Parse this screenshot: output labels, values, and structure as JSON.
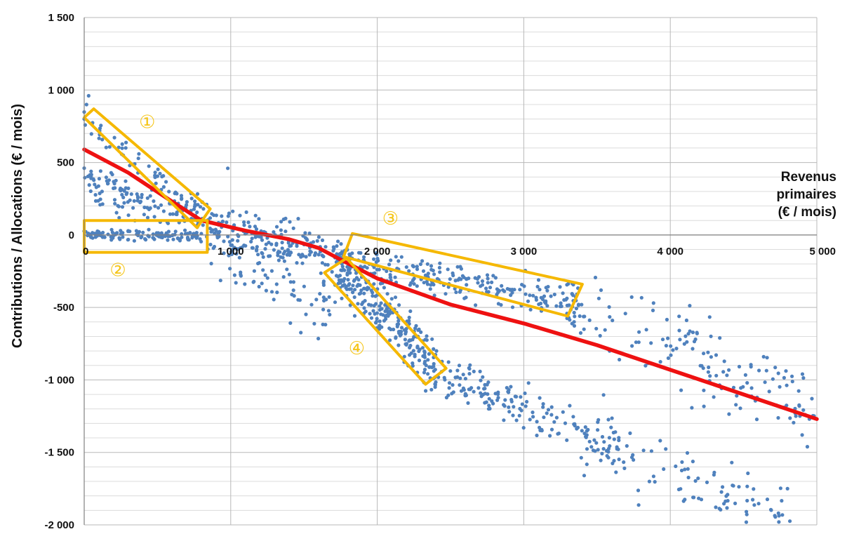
{
  "colors": {
    "points": "#4f81bd",
    "trend": "#ee1111",
    "zones": "#f5b800",
    "grid_major": "#b8b8b8",
    "grid_minor": "#dcdcdc"
  },
  "chart_data": {
    "type": "scatter",
    "xlabel": [
      "Revenus",
      "primaires",
      "(€ / mois)"
    ],
    "ylabel": "Contributions / Allocations  (€ / mois)",
    "xlim": [
      0,
      5000
    ],
    "ylim": [
      -2000,
      1500
    ],
    "x_ticks": [
      1000,
      2000,
      3000,
      4000,
      5000
    ],
    "x_tick_labels": [
      "1 000",
      "2 000",
      "3 000",
      "4 000",
      "5 000"
    ],
    "y_ticks": [
      1500,
      1000,
      500,
      0,
      -500,
      -1000,
      -1500,
      -2000
    ],
    "y_tick_labels": [
      "1 500",
      "1 000",
      "500",
      "0",
      "-500",
      "-1 000",
      "-1 500",
      "-2 000"
    ],
    "grid": true,
    "trend_line": {
      "x": [
        0,
        300,
        600,
        800,
        1100,
        1400,
        1600,
        1750,
        2000,
        2500,
        3000,
        3500,
        4000,
        4500,
        5000
      ],
      "y": [
        590,
        430,
        230,
        100,
        30,
        -30,
        -90,
        -170,
        -300,
        -480,
        -610,
        -760,
        -930,
        -1100,
        -1270
      ]
    },
    "clusters": [
      {
        "x0": 0,
        "y0": 800,
        "x1": 800,
        "y1": 150,
        "n": 70,
        "spread": 45
      },
      {
        "x0": 0,
        "y0": 430,
        "x1": 800,
        "y1": 90,
        "n": 75,
        "spread": 35
      },
      {
        "x0": 0,
        "y0": 350,
        "x1": 700,
        "y1": -40,
        "n": 45,
        "spread": 60
      },
      {
        "x0": 0,
        "y0": 0,
        "x1": 800,
        "y1": -10,
        "n": 110,
        "spread": 18
      },
      {
        "x0": 780,
        "y0": 60,
        "x1": 1650,
        "y1": -110,
        "n": 170,
        "spread": 75
      },
      {
        "x0": 850,
        "y0": -100,
        "x1": 1700,
        "y1": -500,
        "n": 80,
        "spread": 130
      },
      {
        "x0": 1750,
        "y0": -170,
        "x1": 3400,
        "y1": -480,
        "n": 220,
        "spread": 55
      },
      {
        "x0": 1700,
        "y0": -180,
        "x1": 2400,
        "y1": -900,
        "n": 260,
        "spread": 100
      },
      {
        "x0": 2300,
        "y0": -900,
        "x1": 3700,
        "y1": -1500,
        "n": 170,
        "spread": 75
      },
      {
        "x0": 3300,
        "y0": -450,
        "x1": 5000,
        "y1": -1200,
        "n": 150,
        "spread": 160
      },
      {
        "x0": 3400,
        "y0": -1400,
        "x1": 4800,
        "y1": -1950,
        "n": 100,
        "spread": 120
      }
    ],
    "extra_points": [
      [
        30,
        960
      ],
      [
        980,
        460
      ],
      [
        0,
        800
      ],
      [
        2560,
        -900
      ],
      [
        4900,
        -1380
      ],
      [
        4800,
        -1750
      ]
    ],
    "zones": [
      {
        "label": "①",
        "corners": [
          [
            0,
            810
          ],
          [
            65,
            870
          ],
          [
            860,
            180
          ],
          [
            770,
            50
          ]
        ],
        "label_pos": [
          430,
          770
        ]
      },
      {
        "label": "②",
        "corners": [
          [
            0,
            100
          ],
          [
            840,
            100
          ],
          [
            840,
            -120
          ],
          [
            0,
            -120
          ]
        ],
        "label_pos": [
          230,
          -250
        ]
      },
      {
        "label": "③",
        "corners": [
          [
            1770,
            -150
          ],
          [
            1830,
            10
          ],
          [
            3400,
            -340
          ],
          [
            3300,
            -560
          ]
        ],
        "label_pos": [
          2090,
          105
        ]
      },
      {
        "label": "④",
        "corners": [
          [
            1640,
            -260
          ],
          [
            1790,
            -160
          ],
          [
            2470,
            -920
          ],
          [
            2330,
            -1030
          ]
        ],
        "label_pos": [
          1860,
          -790
        ]
      }
    ]
  }
}
